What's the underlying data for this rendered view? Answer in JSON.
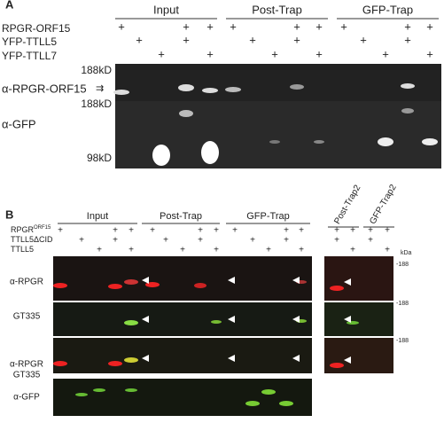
{
  "panel_a": {
    "label": "A",
    "groups": [
      "Input",
      "Post-Trap",
      "GFP-Trap"
    ],
    "rows": [
      {
        "name": "RPGR-ORF15",
        "cells": [
          "+",
          null,
          null,
          "+",
          "+",
          "+",
          null,
          null,
          "+",
          "+",
          "+",
          null,
          null,
          "+",
          "+"
        ]
      },
      {
        "name": "YFP-TTLL5",
        "cells": [
          null,
          "+",
          null,
          "+",
          null,
          null,
          "+",
          null,
          "+",
          null,
          null,
          "+",
          null,
          "+",
          null
        ]
      },
      {
        "name": "YFP-TTLL7",
        "cells": [
          null,
          null,
          "+",
          null,
          "+",
          null,
          null,
          "+",
          null,
          "+",
          null,
          null,
          "+",
          null,
          "+"
        ]
      }
    ],
    "markers": [
      "188kD",
      "188kD",
      "98kD"
    ],
    "antibodies": [
      "α-RPGR-ORF15",
      "α-GFP"
    ]
  },
  "panel_b": {
    "label": "B",
    "groups": [
      "Input",
      "Post-Trap",
      "GFP-Trap",
      "Post-Trap2",
      "GFP-Trap2"
    ],
    "rows": [
      {
        "name": "RPGR",
        "sup": "ORF15",
        "cells": [
          "+",
          null,
          null,
          "+",
          "+",
          "+",
          null,
          null,
          "+",
          "+",
          "+",
          null,
          null,
          "+",
          "+",
          "+",
          "+",
          "+",
          "+"
        ]
      },
      {
        "name": "TTLL5ΔCID",
        "cells": [
          null,
          "+",
          null,
          "+",
          null,
          null,
          "+",
          null,
          "+",
          null,
          null,
          "+",
          null,
          "+",
          null,
          "+",
          null,
          "+",
          null
        ]
      },
      {
        "name": "TTLL5",
        "cells": [
          null,
          null,
          "+",
          null,
          "+",
          null,
          null,
          "+",
          null,
          "+",
          null,
          null,
          "+",
          null,
          "+",
          null,
          "+",
          null,
          "+"
        ]
      }
    ],
    "unit": "kDa",
    "markers": [
      "-188",
      "-188",
      "-188"
    ],
    "antibodies": [
      [
        "α-RPGR"
      ],
      [
        "GT335"
      ],
      [
        "α-RPGR",
        "GT335"
      ],
      [
        "α-GFP"
      ]
    ]
  }
}
